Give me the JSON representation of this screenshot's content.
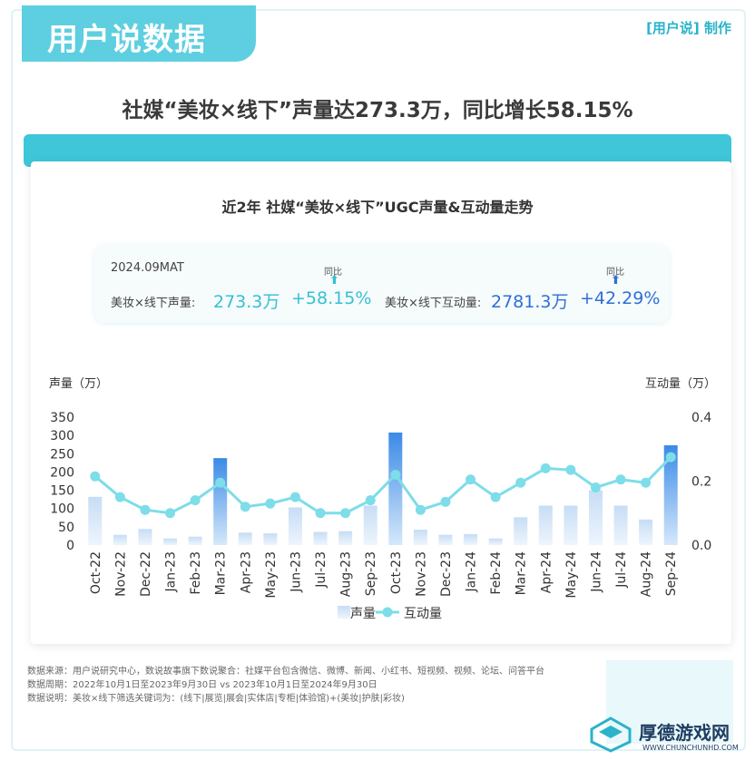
{
  "header": {
    "brand": "用户说数据",
    "maker": "[用户说] 制作"
  },
  "headline": "社媒“美妆×线下”声量达273.3万，同比增长58.15%",
  "kpi": {
    "period": "2024.09MAT",
    "volume_label": "美妆×线下声量:",
    "volume_value": "273.3万",
    "volume_yoy": "+58.15%",
    "interaction_label": "美妆×线下互动量:",
    "interaction_value": "2781.3万",
    "interaction_yoy": "+42.29%",
    "yoy_caption": "同比"
  },
  "colors": {
    "accent": "#3fc6d9",
    "bar_light": "#c6ddf5",
    "bar_dark": "#3a8ae6",
    "line": "#7ddde9"
  },
  "chart_data": {
    "type": "bar",
    "title": "近2年 社媒“美妆×线下”UGC声量&互动量走势",
    "ylabel": "声量（万）",
    "y2label": "互动量（万）",
    "ylim": [
      0,
      350
    ],
    "y2lim": [
      0,
      0.4
    ],
    "yticks": [
      0,
      50,
      100,
      150,
      200,
      250,
      300,
      350
    ],
    "y2ticks": [
      "0.0",
      "0.2",
      "0.4"
    ],
    "categories": [
      "Oct-22",
      "Nov-22",
      "Dec-22",
      "Jan-23",
      "Feb-23",
      "Mar-23",
      "Apr-23",
      "May-23",
      "Jun-23",
      "Jul-23",
      "Aug-23",
      "Sep-23",
      "Oct-23",
      "Nov-23",
      "Dec-23",
      "Jan-24",
      "Feb-24",
      "Mar-24",
      "Apr-24",
      "May-24",
      "Jun-24",
      "Jul-24",
      "Aug-24",
      "Sep-24"
    ],
    "series": [
      {
        "name": "声量",
        "type": "bar",
        "axis": "left",
        "values": [
          132,
          28,
          44,
          18,
          23,
          238,
          34,
          32,
          103,
          36,
          38,
          108,
          308,
          42,
          28,
          30,
          18,
          76,
          108,
          108,
          150,
          108,
          70,
          273
        ]
      },
      {
        "name": "互动量",
        "type": "line",
        "axis": "right",
        "values": [
          0.215,
          0.15,
          0.11,
          0.1,
          0.14,
          0.195,
          0.12,
          0.13,
          0.15,
          0.1,
          0.1,
          0.14,
          0.22,
          0.11,
          0.135,
          0.205,
          0.15,
          0.195,
          0.24,
          0.235,
          0.18,
          0.205,
          0.195,
          0.275
        ]
      }
    ],
    "highlight_categories": [
      "Mar-23",
      "Oct-23",
      "Sep-24"
    ],
    "legend": "bottom",
    "grid": false
  },
  "source": {
    "line1": "数据来源：用户说研究中心，数说故事旗下数说聚合：社媒平台包含微信、微博、新闻、小红书、短视频、视频、论坛、问答平台",
    "line2": "数据周期：2022年10月1日至2023年9月30日 vs 2023年10月1日至2024年9月30日",
    "line3": "数据说明：美妆×线下筛选关键词为：(线下|展览|展会|实体店|专柜|体验馆)+(美妆|护肤|彩妆)"
  },
  "watermark": {
    "text": "厚德游戏网",
    "url": "WWW.CHUNCHUNHD.COM"
  }
}
